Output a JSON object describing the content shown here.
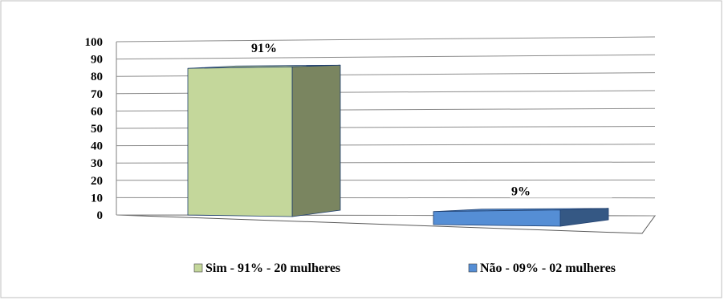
{
  "chart_data": {
    "type": "bar",
    "categories": [
      "Sim - 91% - 20 mulheres",
      "Não - 09% - 02 mulheres"
    ],
    "values": [
      91,
      9
    ],
    "data_labels": [
      "91%",
      "9%"
    ],
    "title": "",
    "xlabel": "",
    "ylabel": "",
    "ylim": [
      0,
      100
    ],
    "y_ticks": [
      "0",
      "10",
      "20",
      "30",
      "40",
      "50",
      "60",
      "70",
      "80",
      "90",
      "100"
    ],
    "grid": true,
    "legend_position": "bottom",
    "style_3d": true,
    "colors": [
      "#c4d79b",
      "#558ed5"
    ]
  }
}
